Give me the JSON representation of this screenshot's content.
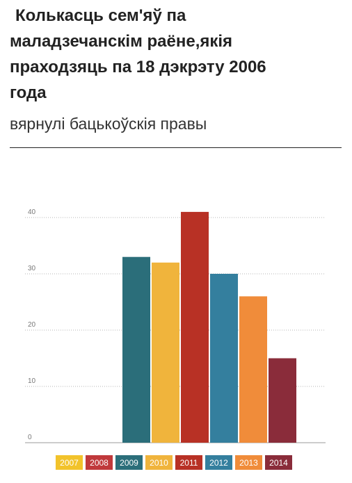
{
  "header": {
    "title_lines": [
      "Колькасць сем'яў па",
      "маладзечанскім раёне,якія",
      "праходзяць па 18 дэкрэту 2006",
      "года"
    ],
    "subtitle": "вярнулі бацькоўскія правы"
  },
  "chart_data": {
    "type": "bar",
    "title": "Колькасць сем'яў па маладзечанскім раёне,якія праходзяць па 18 дэкрэту 2006 года",
    "subtitle": "вярнулі бацькоўскія правы",
    "xlabel": "",
    "ylabel": "",
    "categories": [
      "2007",
      "2008",
      "2009",
      "2010",
      "2011",
      "2012",
      "2013",
      "2014"
    ],
    "values": [
      0,
      0,
      33,
      32,
      41,
      30,
      26,
      15
    ],
    "colors": [
      "#f2c32b",
      "#c0393b",
      "#2b6e7a",
      "#f0b43c",
      "#b83125",
      "#347f9e",
      "#f08c3a",
      "#8a2c3a"
    ],
    "ylim": [
      0,
      40
    ],
    "yticks": [
      0,
      10,
      20,
      30,
      40
    ],
    "grid": true,
    "legend": "bottom"
  }
}
